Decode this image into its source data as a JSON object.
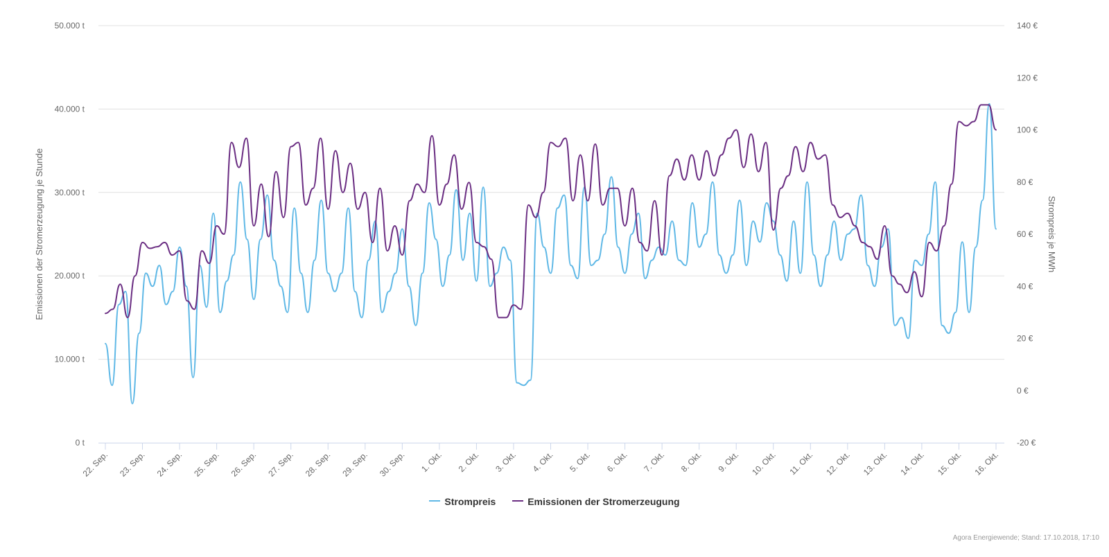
{
  "chart_data": {
    "type": "line",
    "title": "",
    "x_labels": [
      "22. Sep.",
      "23. Sep.",
      "24. Sep.",
      "25. Sep.",
      "26. Sep.",
      "27. Sep.",
      "28. Sep.",
      "29. Sep.",
      "30. Sep.",
      "1. Okt.",
      "2. Okt.",
      "3. Okt.",
      "4. Okt.",
      "5. Okt.",
      "6. Okt.",
      "7. Okt.",
      "8. Okt.",
      "9. Okt.",
      "10. Okt.",
      "11. Okt.",
      "12. Okt.",
      "13. Okt.",
      "14. Okt.",
      "15. Okt.",
      "16. Okt."
    ],
    "x_step_hours": 6,
    "y_left": {
      "label": "Emissionen der Stromerzeugung je Stunde",
      "ticks": [
        "0 t",
        "10.000 t",
        "20.000 t",
        "30.000 t",
        "40.000 t",
        "50.000 t"
      ],
      "tick_values": [
        0,
        10000,
        20000,
        30000,
        40000,
        50000
      ],
      "range": [
        0,
        50000
      ]
    },
    "y_right": {
      "label": "Strompreis je MWh",
      "ticks": [
        "-20 €",
        "0 €",
        "20 €",
        "40 €",
        "60 €",
        "80 €",
        "100 €",
        "120 €",
        "140 €"
      ],
      "tick_values": [
        -20,
        0,
        20,
        40,
        60,
        80,
        100,
        120,
        140
      ],
      "range": [
        -20,
        140
      ]
    },
    "grid": true,
    "legend_position": "bottom-center",
    "series": [
      {
        "name": "Strompreis",
        "axis": "right",
        "color": "#5fb8e6",
        "values": [
          18,
          2,
          33,
          38,
          -5,
          22,
          45,
          40,
          48,
          33,
          38,
          55,
          40,
          5,
          48,
          32,
          68,
          30,
          42,
          52,
          80,
          58,
          35,
          58,
          75,
          50,
          40,
          30,
          70,
          45,
          30,
          50,
          73,
          45,
          38,
          45,
          70,
          38,
          28,
          50,
          65,
          30,
          38,
          45,
          62,
          40,
          25,
          45,
          72,
          58,
          40,
          52,
          77,
          50,
          68,
          42,
          78,
          40,
          45,
          55,
          50,
          3,
          2,
          4,
          68,
          55,
          45,
          70,
          75,
          48,
          43,
          78,
          48,
          50,
          60,
          82,
          55,
          45,
          60,
          68,
          43,
          50,
          55,
          52,
          65,
          50,
          48,
          72,
          55,
          60,
          80,
          52,
          45,
          52,
          73,
          48,
          65,
          57,
          72,
          65,
          52,
          42,
          65,
          45,
          80,
          52,
          40,
          52,
          65,
          50,
          60,
          62,
          75,
          48,
          40,
          55,
          62,
          25,
          28,
          20,
          50,
          48,
          60,
          80,
          25,
          22,
          30,
          57,
          30,
          55,
          73,
          110,
          62
        ]
      },
      {
        "name": "Emissionen der Stromerzeugung",
        "axis": "left",
        "color": "#6a2d82",
        "values": [
          15500,
          16000,
          19000,
          15000,
          20000,
          24000,
          23300,
          23500,
          24000,
          22500,
          23000,
          17000,
          16000,
          23000,
          21500,
          26000,
          25000,
          36000,
          33000,
          36500,
          26000,
          31000,
          24700,
          32500,
          27000,
          35500,
          36000,
          28500,
          30500,
          36500,
          28000,
          35000,
          30000,
          33500,
          28000,
          30000,
          24000,
          30500,
          23000,
          26000,
          22500,
          29000,
          31000,
          30000,
          36800,
          28500,
          31000,
          34500,
          28000,
          31200,
          24000,
          23500,
          22000,
          15000,
          15000,
          16500,
          16000,
          28500,
          27000,
          30000,
          36000,
          35500,
          36500,
          29000,
          34500,
          29000,
          35800,
          28500,
          30500,
          30500,
          26000,
          30500,
          24000,
          23000,
          29000,
          22500,
          32000,
          34000,
          31500,
          34500,
          31500,
          35000,
          32000,
          34500,
          36500,
          37500,
          33000,
          37000,
          32500,
          36000,
          25500,
          30500,
          32000,
          35500,
          32500,
          36000,
          34000,
          34500,
          28500,
          27000,
          27500,
          26000,
          24000,
          23500,
          22000,
          26000,
          20000,
          19000,
          18000,
          20500,
          17500,
          24000,
          23000,
          26000,
          31000,
          38500,
          38000,
          38500,
          40500,
          40500,
          37500
        ]
      }
    ]
  },
  "legend": {
    "items": [
      {
        "label": "Strompreis",
        "color": "#5fb8e6"
      },
      {
        "label": "Emissionen der Stromerzeugung",
        "color": "#6a2d82"
      }
    ]
  },
  "credit": "Agora Energiewende; Stand: 17.10.2018, 17:10"
}
